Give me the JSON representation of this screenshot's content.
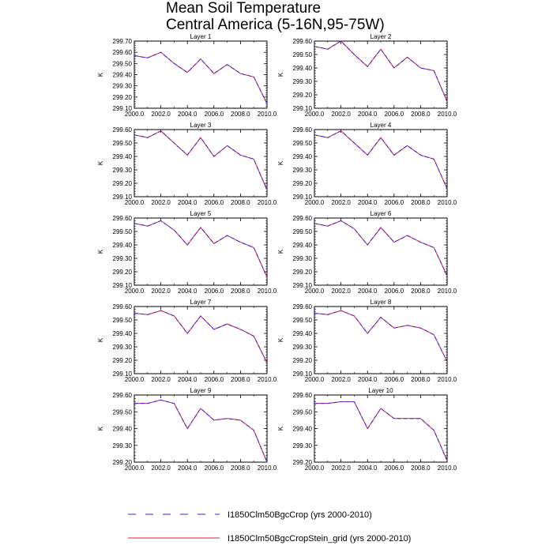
{
  "figure": {
    "title_line1": "Mean Soil Temperature",
    "title_line2": "Central America (5-16N,95-75W)"
  },
  "legend": [
    {
      "label": "I1850Clm50BgcCrop (yrs 2000-2010)",
      "color": "#3a1fe0",
      "style": "dashed"
    },
    {
      "label": "I1850Clm50BgcCropStein_grid (yrs 2000-2010)",
      "color": "#e0202a",
      "style": "solid"
    }
  ],
  "chart_data": [
    {
      "type": "line",
      "title": "Layer 1",
      "xlabel": "",
      "ylabel": "K",
      "xlim": [
        2000,
        2010
      ],
      "ylim": [
        299.1,
        299.7
      ],
      "xticks": [
        "2000.0",
        "2002.0",
        "2004.0",
        "2006.0",
        "2008.0",
        "2010.0"
      ],
      "yticks": [
        "299.10",
        "299.20",
        "299.30",
        "299.40",
        "299.50",
        "299.60",
        "299.70"
      ],
      "x": [
        2000,
        2001,
        2002,
        2003,
        2004,
        2005,
        2006,
        2007,
        2008,
        2009,
        2010
      ],
      "series": [
        {
          "name": "I1850Clm50BgcCrop (yrs 2000-2010)",
          "values": [
            299.57,
            299.55,
            299.6,
            299.5,
            299.42,
            299.54,
            299.41,
            299.49,
            299.41,
            299.38,
            299.14
          ]
        },
        {
          "name": "I1850Clm50BgcCropStein_grid (yrs 2000-2010)",
          "values": [
            299.57,
            299.55,
            299.6,
            299.5,
            299.42,
            299.54,
            299.41,
            299.49,
            299.41,
            299.38,
            299.14
          ]
        }
      ]
    },
    {
      "type": "line",
      "title": "Layer 2",
      "xlabel": "",
      "ylabel": "K",
      "xlim": [
        2000,
        2010
      ],
      "ylim": [
        299.1,
        299.6
      ],
      "xticks": [
        "2000.0",
        "2002.0",
        "2004.0",
        "2006.0",
        "2008.0",
        "2010.0"
      ],
      "yticks": [
        "299.10",
        "299.20",
        "299.30",
        "299.40",
        "299.50",
        "299.60"
      ],
      "x": [
        2000,
        2001,
        2002,
        2003,
        2004,
        2005,
        2006,
        2007,
        2008,
        2009,
        2010
      ],
      "series": [
        {
          "name": "I1850Clm50BgcCrop (yrs 2000-2010)",
          "values": [
            299.56,
            299.54,
            299.6,
            299.5,
            299.41,
            299.54,
            299.4,
            299.48,
            299.4,
            299.38,
            299.15
          ]
        },
        {
          "name": "I1850Clm50BgcCropStein_grid (yrs 2000-2010)",
          "values": [
            299.56,
            299.54,
            299.6,
            299.5,
            299.41,
            299.54,
            299.4,
            299.48,
            299.4,
            299.38,
            299.15
          ]
        }
      ]
    },
    {
      "type": "line",
      "title": "Layer 3",
      "xlabel": "",
      "ylabel": "K",
      "xlim": [
        2000,
        2010
      ],
      "ylim": [
        299.1,
        299.6
      ],
      "xticks": [
        "2000.0",
        "2002.0",
        "2004.0",
        "2006.0",
        "2008.0",
        "2010.0"
      ],
      "yticks": [
        "299.10",
        "299.20",
        "299.30",
        "299.40",
        "299.50",
        "299.60"
      ],
      "x": [
        2000,
        2001,
        2002,
        2003,
        2004,
        2005,
        2006,
        2007,
        2008,
        2009,
        2010
      ],
      "series": [
        {
          "name": "I1850Clm50BgcCrop (yrs 2000-2010)",
          "values": [
            299.56,
            299.54,
            299.59,
            299.5,
            299.41,
            299.54,
            299.4,
            299.48,
            299.41,
            299.38,
            299.15
          ]
        },
        {
          "name": "I1850Clm50BgcCropStein_grid (yrs 2000-2010)",
          "values": [
            299.56,
            299.54,
            299.59,
            299.5,
            299.41,
            299.54,
            299.4,
            299.48,
            299.41,
            299.38,
            299.15
          ]
        }
      ]
    },
    {
      "type": "line",
      "title": "Layer 4",
      "xlabel": "",
      "ylabel": "K",
      "xlim": [
        2000,
        2010
      ],
      "ylim": [
        299.1,
        299.6
      ],
      "xticks": [
        "2000.0",
        "2002.0",
        "2004.0",
        "2006.0",
        "2008.0",
        "2010.0"
      ],
      "yticks": [
        "299.10",
        "299.20",
        "299.30",
        "299.40",
        "299.50",
        "299.60"
      ],
      "x": [
        2000,
        2001,
        2002,
        2003,
        2004,
        2005,
        2006,
        2007,
        2008,
        2009,
        2010
      ],
      "series": [
        {
          "name": "I1850Clm50BgcCrop (yrs 2000-2010)",
          "values": [
            299.56,
            299.54,
            299.59,
            299.5,
            299.41,
            299.54,
            299.41,
            299.48,
            299.41,
            299.38,
            299.16
          ]
        },
        {
          "name": "I1850Clm50BgcCropStein_grid (yrs 2000-2010)",
          "values": [
            299.56,
            299.54,
            299.59,
            299.5,
            299.41,
            299.54,
            299.41,
            299.48,
            299.41,
            299.38,
            299.16
          ]
        }
      ]
    },
    {
      "type": "line",
      "title": "Layer 5",
      "xlabel": "",
      "ylabel": "K",
      "xlim": [
        2000,
        2010
      ],
      "ylim": [
        299.1,
        299.6
      ],
      "xticks": [
        "2000.0",
        "2002.0",
        "2004.0",
        "2006.0",
        "2008.0",
        "2010.0"
      ],
      "yticks": [
        "299.10",
        "299.20",
        "299.30",
        "299.40",
        "299.50",
        "299.60"
      ],
      "x": [
        2000,
        2001,
        2002,
        2003,
        2004,
        2005,
        2006,
        2007,
        2008,
        2009,
        2010
      ],
      "series": [
        {
          "name": "I1850Clm50BgcCrop (yrs 2000-2010)",
          "values": [
            299.56,
            299.54,
            299.58,
            299.51,
            299.4,
            299.53,
            299.41,
            299.47,
            299.42,
            299.38,
            299.16
          ]
        },
        {
          "name": "I1850Clm50BgcCropStein_grid (yrs 2000-2010)",
          "values": [
            299.56,
            299.54,
            299.58,
            299.51,
            299.4,
            299.53,
            299.41,
            299.47,
            299.42,
            299.38,
            299.16
          ]
        }
      ]
    },
    {
      "type": "line",
      "title": "Layer 6",
      "xlabel": "",
      "ylabel": "K",
      "xlim": [
        2000,
        2010
      ],
      "ylim": [
        299.1,
        299.6
      ],
      "xticks": [
        "2000.0",
        "2002.0",
        "2004.0",
        "2006.0",
        "2008.0",
        "2010.0"
      ],
      "yticks": [
        "299.10",
        "299.20",
        "299.30",
        "299.40",
        "299.50",
        "299.60"
      ],
      "x": [
        2000,
        2001,
        2002,
        2003,
        2004,
        2005,
        2006,
        2007,
        2008,
        2009,
        2010
      ],
      "series": [
        {
          "name": "I1850Clm50BgcCrop (yrs 2000-2010)",
          "values": [
            299.56,
            299.54,
            299.58,
            299.52,
            299.4,
            299.53,
            299.42,
            299.47,
            299.42,
            299.38,
            299.17
          ]
        },
        {
          "name": "I1850Clm50BgcCropStein_grid (yrs 2000-2010)",
          "values": [
            299.56,
            299.54,
            299.58,
            299.52,
            299.4,
            299.53,
            299.42,
            299.47,
            299.42,
            299.38,
            299.17
          ]
        }
      ]
    },
    {
      "type": "line",
      "title": "Layer 7",
      "xlabel": "",
      "ylabel": "K",
      "xlim": [
        2000,
        2010
      ],
      "ylim": [
        299.1,
        299.6
      ],
      "xticks": [
        "2000.0",
        "2002.0",
        "2004.0",
        "2006.0",
        "2008.0",
        "2010.0"
      ],
      "yticks": [
        "299.10",
        "299.20",
        "299.30",
        "299.40",
        "299.50",
        "299.60"
      ],
      "x": [
        2000,
        2001,
        2002,
        2003,
        2004,
        2005,
        2006,
        2007,
        2008,
        2009,
        2010
      ],
      "series": [
        {
          "name": "I1850Clm50BgcCrop (yrs 2000-2010)",
          "values": [
            299.55,
            299.54,
            299.57,
            299.53,
            299.4,
            299.53,
            299.43,
            299.47,
            299.43,
            299.38,
            299.18
          ]
        },
        {
          "name": "I1850Clm50BgcCropStein_grid (yrs 2000-2010)",
          "values": [
            299.55,
            299.54,
            299.57,
            299.53,
            299.4,
            299.53,
            299.43,
            299.47,
            299.43,
            299.38,
            299.18
          ]
        }
      ]
    },
    {
      "type": "line",
      "title": "Layer 8",
      "xlabel": "",
      "ylabel": "K",
      "xlim": [
        2000,
        2010
      ],
      "ylim": [
        299.1,
        299.6
      ],
      "xticks": [
        "2000.0",
        "2002.0",
        "2004.0",
        "2006.0",
        "2008.0",
        "2010.0"
      ],
      "yticks": [
        "299.10",
        "299.20",
        "299.30",
        "299.40",
        "299.50",
        "299.60"
      ],
      "x": [
        2000,
        2001,
        2002,
        2003,
        2004,
        2005,
        2006,
        2007,
        2008,
        2009,
        2010
      ],
      "series": [
        {
          "name": "I1850Clm50BgcCrop (yrs 2000-2010)",
          "values": [
            299.55,
            299.54,
            299.57,
            299.53,
            299.4,
            299.52,
            299.44,
            299.46,
            299.44,
            299.39,
            299.19
          ]
        },
        {
          "name": "I1850Clm50BgcCropStein_grid (yrs 2000-2010)",
          "values": [
            299.55,
            299.54,
            299.57,
            299.53,
            299.4,
            299.52,
            299.44,
            299.46,
            299.44,
            299.39,
            299.19
          ]
        }
      ]
    },
    {
      "type": "line",
      "title": "Layer 9",
      "xlabel": "",
      "ylabel": "K",
      "xlim": [
        2000,
        2010
      ],
      "ylim": [
        299.2,
        299.6
      ],
      "xticks": [
        "2000.0",
        "2002.0",
        "2004.0",
        "2006.0",
        "2008.0",
        "2010.0"
      ],
      "yticks": [
        "299.20",
        "299.30",
        "299.40",
        "299.50",
        "299.60"
      ],
      "x": [
        2000,
        2001,
        2002,
        2003,
        2004,
        2005,
        2006,
        2007,
        2008,
        2009,
        2010
      ],
      "series": [
        {
          "name": "I1850Clm50BgcCrop (yrs 2000-2010)",
          "values": [
            299.55,
            299.55,
            299.57,
            299.55,
            299.4,
            299.52,
            299.45,
            299.46,
            299.45,
            299.39,
            299.2
          ]
        },
        {
          "name": "I1850Clm50BgcCropStein_grid (yrs 2000-2010)",
          "values": [
            299.55,
            299.55,
            299.57,
            299.55,
            299.4,
            299.52,
            299.45,
            299.46,
            299.45,
            299.39,
            299.2
          ]
        }
      ]
    },
    {
      "type": "line",
      "title": "Layer 10",
      "xlabel": "",
      "ylabel": "K",
      "xlim": [
        2000,
        2010
      ],
      "ylim": [
        299.2,
        299.6
      ],
      "xticks": [
        "2000.0",
        "2002.0",
        "2004.0",
        "2006.0",
        "2008.0",
        "2010.0"
      ],
      "yticks": [
        "299.20",
        "299.30",
        "299.40",
        "299.50",
        "299.60"
      ],
      "x": [
        2000,
        2001,
        2002,
        2003,
        2004,
        2005,
        2006,
        2007,
        2008,
        2009,
        2010
      ],
      "series": [
        {
          "name": "I1850Clm50BgcCrop (yrs 2000-2010)",
          "values": [
            299.55,
            299.55,
            299.56,
            299.56,
            299.4,
            299.52,
            299.46,
            299.46,
            299.46,
            299.39,
            299.21
          ]
        },
        {
          "name": "I1850Clm50BgcCropStein_grid (yrs 2000-2010)",
          "values": [
            299.55,
            299.55,
            299.56,
            299.56,
            299.4,
            299.52,
            299.46,
            299.46,
            299.46,
            299.39,
            299.21
          ]
        }
      ]
    }
  ]
}
